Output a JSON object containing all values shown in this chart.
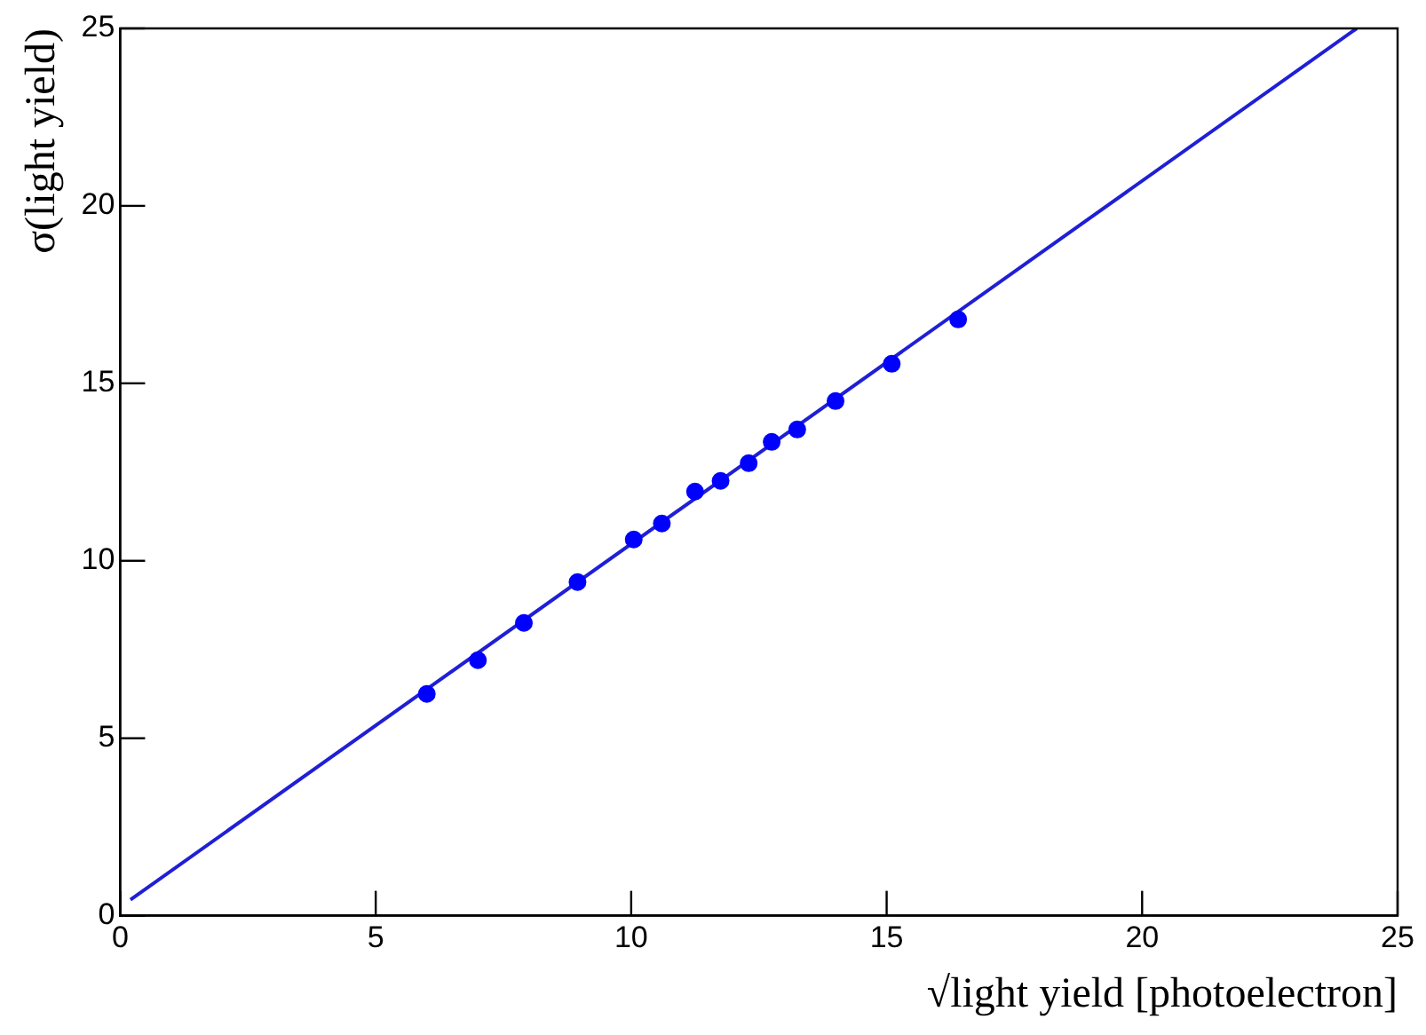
{
  "chart_data": {
    "type": "scatter",
    "xlabel": "√light yield [photoelectron]",
    "ylabel": "σ(light yield)",
    "xlim": [
      0,
      25
    ],
    "ylim": [
      0,
      25
    ],
    "xticks": [
      0,
      5,
      10,
      15,
      20,
      25
    ],
    "yticks": [
      0,
      5,
      10,
      15,
      20,
      25
    ],
    "grid": false,
    "legend": false,
    "marker": "circle",
    "series": [
      {
        "color": "#0000ff",
        "x": [
          6.0,
          7.0,
          7.9,
          8.95,
          10.05,
          10.6,
          11.25,
          11.75,
          12.3,
          12.75,
          13.25,
          14.0,
          15.1,
          16.4
        ],
        "values": [
          6.25,
          7.2,
          8.25,
          9.4,
          10.6,
          11.05,
          11.95,
          12.25,
          12.75,
          13.35,
          13.7,
          14.5,
          15.55,
          16.8
        ]
      },
      {
        "type": "line",
        "color": "#1f1fd6",
        "marker": "none",
        "line_style": "solid",
        "x": [
          0.2,
          24.2
        ],
        "values": [
          0.45,
          25
        ]
      }
    ]
  }
}
